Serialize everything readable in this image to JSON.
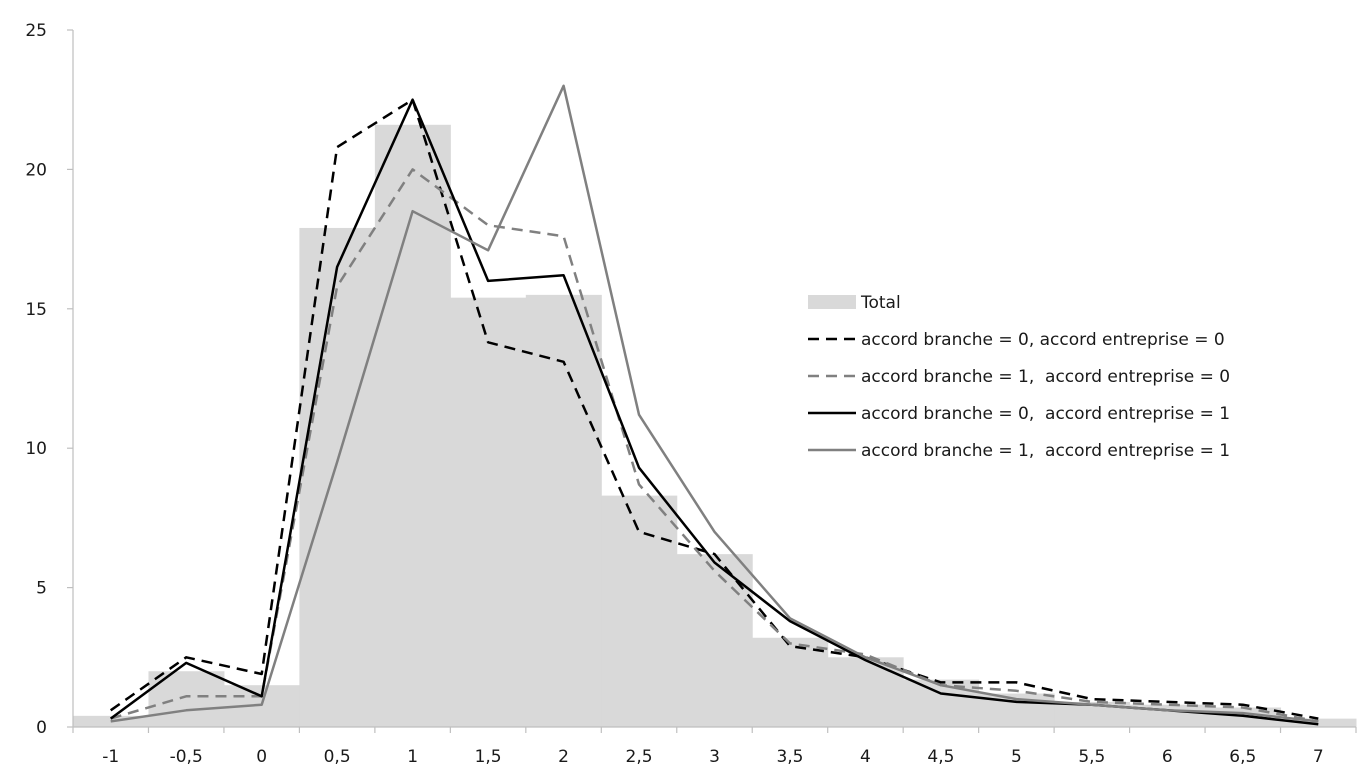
{
  "chart_data": {
    "type": "bar",
    "x": [
      -1,
      -0.5,
      0,
      0.5,
      1,
      1.5,
      2,
      2.5,
      3,
      3.5,
      4,
      4.5,
      5,
      5.5,
      6,
      6.5,
      7
    ],
    "x_tick_labels": [
      "-1",
      "-0,5",
      "0",
      "0,5",
      "1",
      "1,5",
      "2",
      "2,5",
      "3",
      "3,5",
      "4",
      "4,5",
      "5",
      "5,5",
      "6",
      "6,5",
      "7"
    ],
    "y_tick_labels": [
      "0",
      "5",
      "10",
      "15",
      "20",
      "25"
    ],
    "ylim": [
      0,
      25
    ],
    "grid": false,
    "legend_position": "right-center",
    "series": [
      {
        "name": "Total",
        "type": "bar",
        "color": "#d9d9d9",
        "values": [
          0.4,
          2.0,
          1.5,
          17.9,
          21.6,
          15.4,
          15.5,
          8.3,
          6.2,
          3.2,
          2.5,
          1.7,
          1.2,
          0.9,
          0.8,
          0.7,
          0.3
        ]
      },
      {
        "name": "accord branche = 0, accord entreprise = 0",
        "type": "line",
        "color": "#000000",
        "dash": "dashed",
        "values": [
          0.6,
          2.5,
          1.9,
          20.8,
          22.5,
          13.8,
          13.1,
          7.0,
          6.2,
          2.9,
          2.5,
          1.6,
          1.6,
          1.0,
          0.9,
          0.8,
          0.3
        ]
      },
      {
        "name": "accord branche = 1,  accord entreprise = 0",
        "type": "line",
        "color": "#808080",
        "dash": "dashed",
        "values": [
          0.3,
          1.1,
          1.1,
          15.8,
          20.0,
          18.0,
          17.6,
          8.7,
          5.6,
          3.0,
          2.6,
          1.5,
          1.3,
          0.9,
          0.8,
          0.7,
          0.2
        ]
      },
      {
        "name": "accord branche = 0,  accord entreprise = 1",
        "type": "line",
        "color": "#000000",
        "dash": "solid",
        "values": [
          0.3,
          2.3,
          1.1,
          16.5,
          22.5,
          16.0,
          16.2,
          9.3,
          5.9,
          3.8,
          2.4,
          1.2,
          0.9,
          0.8,
          0.6,
          0.4,
          0.1
        ]
      },
      {
        "name": "accord branche = 1,  accord entreprise = 1",
        "type": "line",
        "color": "#808080",
        "dash": "solid",
        "values": [
          0.2,
          0.6,
          0.8,
          9.5,
          18.5,
          17.1,
          23.0,
          11.2,
          7.0,
          3.9,
          2.5,
          1.5,
          1.0,
          0.8,
          0.6,
          0.5,
          0.2
        ]
      }
    ]
  }
}
